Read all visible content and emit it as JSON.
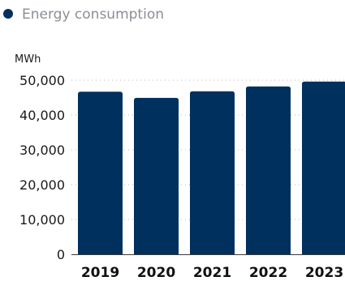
{
  "chart_data": {
    "type": "bar",
    "categories": [
      "2019",
      "2020",
      "2021",
      "2022",
      "2023"
    ],
    "series": [
      {
        "name": "Energy consumption",
        "values": [
          46700,
          44900,
          46800,
          48200,
          49600
        ]
      }
    ],
    "ylabel": "MWh",
    "ylim": [
      0,
      50000
    ],
    "yticks": [
      0,
      10000,
      20000,
      30000,
      40000,
      50000
    ],
    "ytick_labels": [
      "0",
      "10,000",
      "20,000",
      "30,000",
      "40,000",
      "50,000"
    ],
    "grid": true,
    "legend_position": "top-left",
    "colors": {
      "bar": "#00305e",
      "legend_marker": "#00305e"
    }
  }
}
